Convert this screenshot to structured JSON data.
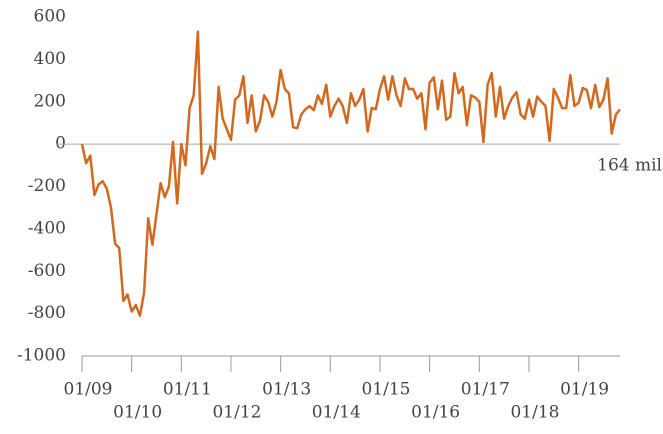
{
  "chart_data": {
    "type": "line",
    "annotation": "164 mil",
    "color": "#d2691e",
    "categories": [
      "01/09",
      null,
      null,
      null,
      null,
      null,
      null,
      null,
      null,
      null,
      null,
      null,
      "01/10",
      null,
      null,
      null,
      null,
      null,
      null,
      null,
      null,
      null,
      null,
      null,
      "01/11",
      null,
      null,
      null,
      null,
      null,
      null,
      null,
      null,
      null,
      null,
      null,
      "01/12",
      null,
      null,
      null,
      null,
      null,
      null,
      null,
      null,
      null,
      null,
      null,
      "01/13",
      null,
      null,
      null,
      null,
      null,
      null,
      null,
      null,
      null,
      null,
      null,
      "01/14",
      null,
      null,
      null,
      null,
      null,
      null,
      null,
      null,
      null,
      null,
      null,
      "01/15",
      null,
      null,
      null,
      null,
      null,
      null,
      null,
      null,
      null,
      null,
      null,
      "01/16",
      null,
      null,
      null,
      null,
      null,
      null,
      null,
      null,
      null,
      null,
      null,
      "01/17",
      null,
      null,
      null,
      null,
      null,
      null,
      null,
      null,
      null,
      null,
      null,
      "01/18",
      null,
      null,
      null,
      null,
      null,
      null,
      null,
      null,
      null,
      null,
      null,
      "01/19",
      null,
      null,
      null,
      null,
      null,
      null,
      null,
      null,
      null,
      null
    ],
    "values": [
      0,
      -90,
      -55,
      -240,
      -190,
      -175,
      -210,
      -300,
      -470,
      -490,
      -740,
      -710,
      -790,
      -760,
      -810,
      -700,
      -350,
      -475,
      -330,
      -185,
      -250,
      -200,
      10,
      -280,
      0,
      -100,
      170,
      230,
      530,
      -140,
      -90,
      -10,
      -70,
      270,
      120,
      70,
      20,
      210,
      230,
      320,
      100,
      230,
      60,
      110,
      230,
      200,
      130,
      200,
      350,
      260,
      240,
      80,
      75,
      140,
      165,
      180,
      160,
      230,
      190,
      280,
      130,
      180,
      215,
      180,
      100,
      240,
      180,
      210,
      260,
      60,
      170,
      165,
      260,
      320,
      210,
      320,
      230,
      180,
      310,
      260,
      260,
      215,
      240,
      70,
      290,
      315,
      165,
      300,
      115,
      130,
      335,
      240,
      270,
      90,
      230,
      220,
      200,
      10,
      280,
      335,
      130,
      270,
      120,
      180,
      220,
      245,
      140,
      120,
      210,
      130,
      225,
      200,
      180,
      15,
      260,
      220,
      170,
      170,
      325,
      180,
      195,
      265,
      255,
      170,
      280,
      175,
      210,
      310,
      50,
      140,
      164
    ],
    "ylim": [
      -1000,
      600
    ],
    "yticks": [
      -1000,
      -800,
      -600,
      -400,
      -200,
      0,
      200,
      400,
      600
    ]
  }
}
